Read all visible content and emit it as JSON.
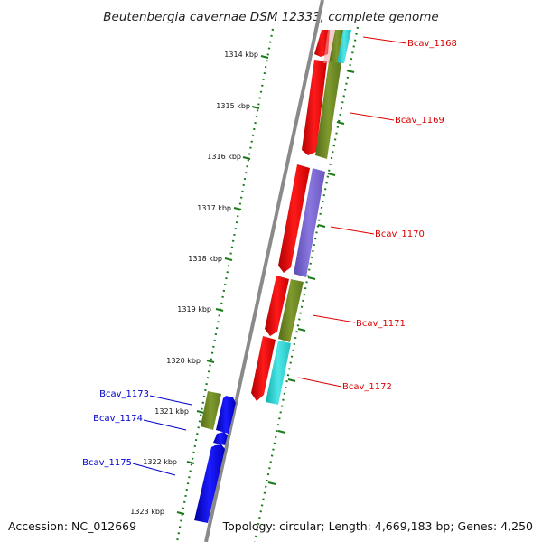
{
  "title": "Beutenbergia cavernae DSM 12333, complete genome",
  "footer": {
    "accession": "Accession: NC_012669",
    "summary": "Topology: circular; Length: 4,669,183 bp; Genes: 4,250"
  },
  "ruler": {
    "unit": "kbp",
    "labels": [
      "1314 kbp",
      "1315 kbp",
      "1316 kbp",
      "1317 kbp",
      "1318 kbp",
      "1319 kbp",
      "1320 kbp",
      "1321 kbp",
      "1322 kbp",
      "1323 kbp"
    ]
  },
  "colors": {
    "forward_label": "#dd0000",
    "reverse_label": "#0000cc",
    "backbone": "#8a8a8a",
    "ruler": "#1a7a1a"
  },
  "genes": [
    {
      "name": "Bcav_1168",
      "strand": "forward",
      "label_color": "#dd0000"
    },
    {
      "name": "Bcav_1169",
      "strand": "forward",
      "label_color": "#dd0000"
    },
    {
      "name": "Bcav_1170",
      "strand": "forward",
      "label_color": "#dd0000"
    },
    {
      "name": "Bcav_1171",
      "strand": "forward",
      "label_color": "#dd0000"
    },
    {
      "name": "Bcav_1172",
      "strand": "forward",
      "label_color": "#dd0000"
    },
    {
      "name": "Bcav_1173",
      "strand": "reverse",
      "label_color": "#0000cc"
    },
    {
      "name": "Bcav_1174",
      "strand": "reverse",
      "label_color": "#0000cc"
    },
    {
      "name": "Bcav_1175",
      "strand": "reverse",
      "label_color": "#0000cc"
    }
  ]
}
